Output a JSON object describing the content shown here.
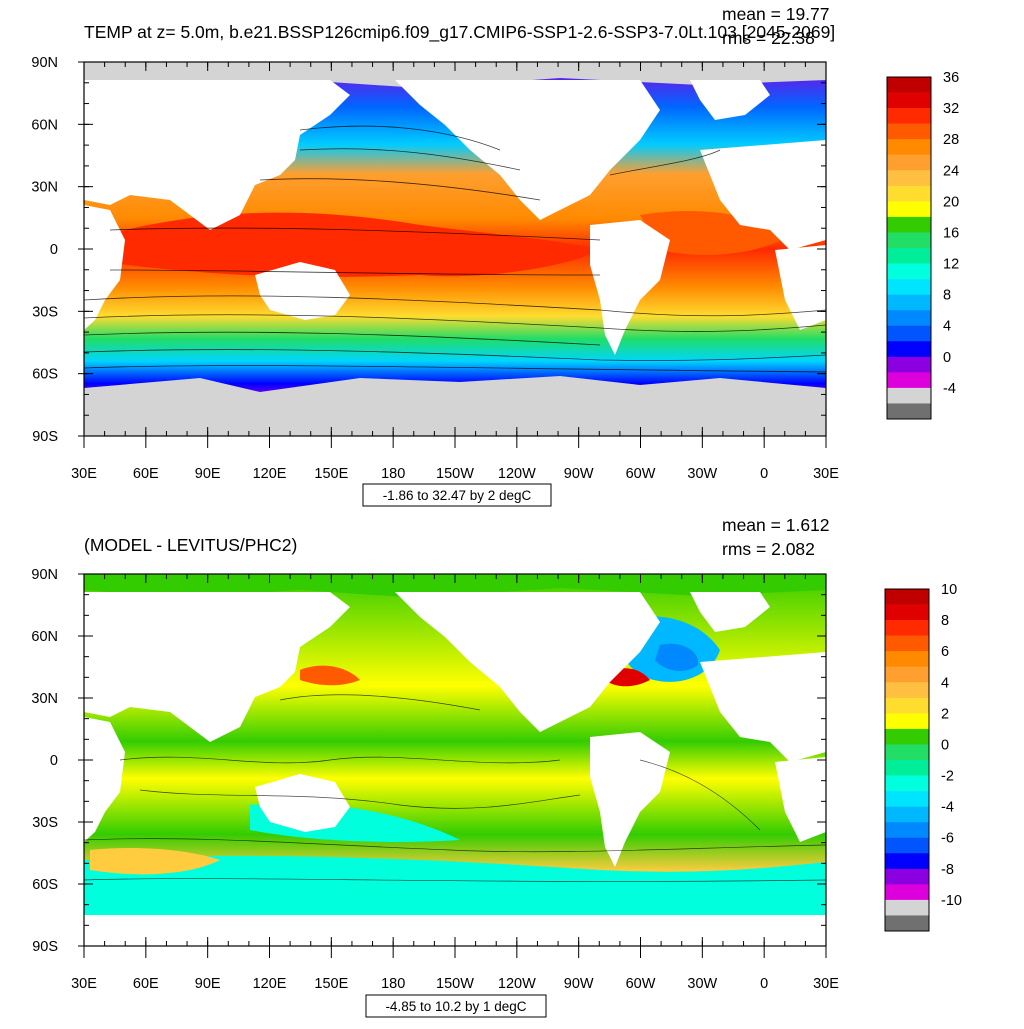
{
  "panels": [
    {
      "id": "top",
      "title": "TEMP at z=   5.0m, b.e21.BSSP126cmip6.f09_g17.CMIP6-SSP1-2.6-SSP3-7.0Lt.103 [2045-2069]",
      "stats": {
        "mean": "mean = 19.77",
        "rms": "rms = 22.38"
      },
      "range_note": "-1.86 to 32.47 by 2 degC",
      "lat_labels": [
        "90N",
        "60N",
        "30N",
        "0",
        "30S",
        "60S",
        "90S"
      ],
      "lon_labels": [
        "30E",
        "60E",
        "90E",
        "120E",
        "150E",
        "180",
        "150W",
        "120W",
        "90W",
        "60W",
        "30W",
        "0",
        "30E"
      ],
      "colorbar": {
        "labels": [
          "36",
          "32",
          "28",
          "24",
          "20",
          "16",
          "12",
          "8",
          "4",
          "0",
          "-4"
        ],
        "colors": [
          "#c00000",
          "#e00000",
          "#ff2a00",
          "#ff5a00",
          "#ff8a00",
          "#ff9f30",
          "#ffbf40",
          "#ffdc30",
          "#ffff00",
          "#33cc00",
          "#22dd66",
          "#00ee99",
          "#00ffdd",
          "#00e5ff",
          "#00b8ff",
          "#0088ff",
          "#0055ff",
          "#0000ff",
          "#8a00e0",
          "#dd00dd",
          "#d4d4d4",
          "#707070"
        ]
      }
    },
    {
      "id": "bottom",
      "title": "(MODEL - LEVITUS/PHC2)",
      "stats": {
        "mean": "mean = 1.612",
        "rms": "rms = 2.082"
      },
      "range_note": "-4.85 to 10.2 by 1 degC",
      "lat_labels": [
        "90N",
        "60N",
        "30N",
        "0",
        "30S",
        "60S",
        "90S"
      ],
      "lon_labels": [
        "30E",
        "60E",
        "90E",
        "120E",
        "150E",
        "180",
        "150W",
        "120W",
        "90W",
        "60W",
        "30W",
        "0",
        "30E"
      ],
      "colorbar": {
        "labels": [
          "10",
          "8",
          "6",
          "4",
          "2",
          "0",
          "-2",
          "-4",
          "-6",
          "-8",
          "-10"
        ],
        "colors": [
          "#c00000",
          "#e00000",
          "#ff2a00",
          "#ff5a00",
          "#ff8a00",
          "#ff9f30",
          "#ffbf40",
          "#ffdc30",
          "#ffff00",
          "#33cc00",
          "#22dd66",
          "#00ee99",
          "#00ffdd",
          "#00e5ff",
          "#00b8ff",
          "#0088ff",
          "#0055ff",
          "#0000ff",
          "#8a00e0",
          "#dd00dd",
          "#d4d4d4",
          "#707070"
        ]
      }
    }
  ]
}
